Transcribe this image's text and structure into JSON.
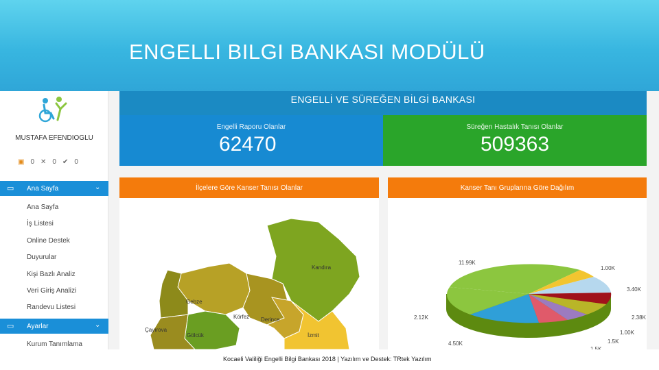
{
  "slide": {
    "title": "ENGELLI BILGI BANKASI MODÜLÜ"
  },
  "sidebar": {
    "user_name": "MUSTAFA EFENDIOGLU",
    "tools": [
      "0",
      "0",
      "0"
    ],
    "menu": [
      {
        "label": "Ana Sayfa",
        "active": true
      },
      {
        "label": "Ayarlar",
        "active": true
      }
    ],
    "sub_items": [
      "Ana Sayfa",
      "İş Listesi",
      "Online Destek",
      "Duyurular",
      "Kişi Bazlı Analiz",
      "Veri Giriş Analizi",
      "Randevu Listesi"
    ],
    "settings_items": [
      "Kurum Tanımlama"
    ]
  },
  "dashboard": {
    "banner": "ENGELLİ VE SÜREĞEN BİLGİ BANKASI",
    "stats": [
      {
        "label": "Engelli Raporu Olanlar",
        "value": "62470",
        "color": "#178ad2"
      },
      {
        "label": "Süreğen Hastalık Tanısı Olanlar",
        "value": "509363",
        "color": "#2aa52a"
      }
    ],
    "panels": [
      {
        "title": "İlçelere Göre Kanser Tanısı Olanlar"
      },
      {
        "title": "Kanser Tanı Gruplarına Göre Dağılım"
      }
    ],
    "map_labels": [
      "Kandıra",
      "Gebze",
      "Körfez",
      "Derince",
      "Çayırova",
      "Gölcük",
      "İzmit"
    ],
    "pie_labels": [
      "11.99K",
      "1.00K",
      "3.40K",
      "2.38K",
      "1.00K",
      "1.5K",
      "1.5K",
      "4.50K",
      "2.12K"
    ]
  },
  "footer": {
    "text": "Kocaeli Valiliği Engelli Bilgi Bankası 2018 | Yazılım ve Destek: TRtek Yazılım"
  },
  "colors": {
    "header": "#38b6e0",
    "banner": "#1b8ac3",
    "orange": "#f47b0c",
    "active": "#1a8fd8"
  }
}
